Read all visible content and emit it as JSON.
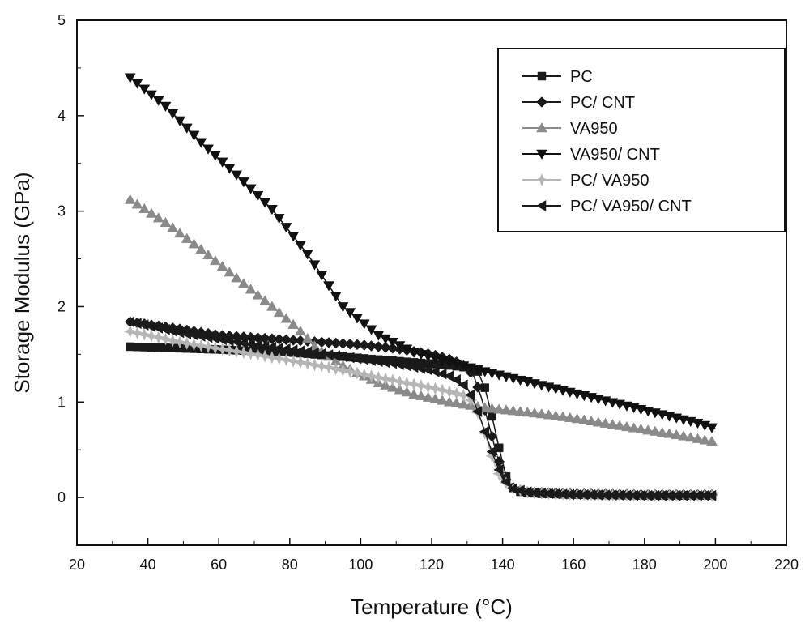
{
  "chart_data": {
    "type": "line",
    "title": "",
    "xlabel": "Temperature (°C)",
    "ylabel": "Storage Modulus (GPa)",
    "xlim": [
      20,
      220
    ],
    "ylim": [
      -0.5,
      5
    ],
    "xticks": [
      20,
      40,
      60,
      80,
      100,
      120,
      140,
      160,
      180,
      200,
      220
    ],
    "yticks": [
      0,
      1,
      2,
      3,
      4,
      5
    ],
    "grid": false,
    "legend_position": "top-right",
    "series": [
      {
        "name": "PC",
        "marker": "square",
        "color": "#1a1a1a",
        "points": [
          [
            35,
            1.58
          ],
          [
            60,
            1.55
          ],
          [
            80,
            1.52
          ],
          [
            100,
            1.46
          ],
          [
            110,
            1.43
          ],
          [
            120,
            1.4
          ],
          [
            126,
            1.38
          ],
          [
            130,
            1.36
          ],
          [
            133,
            1.32
          ],
          [
            135,
            1.15
          ],
          [
            137,
            0.85
          ],
          [
            139,
            0.52
          ],
          [
            141,
            0.22
          ],
          [
            143,
            0.1
          ],
          [
            145,
            0.06
          ],
          [
            150,
            0.04
          ],
          [
            160,
            0.03
          ],
          [
            180,
            0.02
          ],
          [
            200,
            0.02
          ]
        ]
      },
      {
        "name": "PC/ CNT",
        "marker": "diamond",
        "color": "#1a1a1a",
        "points": [
          [
            35,
            1.84
          ],
          [
            50,
            1.76
          ],
          [
            60,
            1.7
          ],
          [
            80,
            1.65
          ],
          [
            100,
            1.6
          ],
          [
            110,
            1.56
          ],
          [
            120,
            1.5
          ],
          [
            126,
            1.44
          ],
          [
            130,
            1.36
          ],
          [
            132,
            1.26
          ],
          [
            134,
            1.05
          ],
          [
            136,
            0.78
          ],
          [
            138,
            0.5
          ],
          [
            140,
            0.25
          ],
          [
            142,
            0.12
          ],
          [
            146,
            0.06
          ],
          [
            160,
            0.04
          ],
          [
            180,
            0.03
          ],
          [
            200,
            0.03
          ]
        ]
      },
      {
        "name": "VA950",
        "marker": "triangle-up",
        "color": "#8a8a8a",
        "points": [
          [
            35,
            3.12
          ],
          [
            45,
            2.88
          ],
          [
            55,
            2.6
          ],
          [
            65,
            2.3
          ],
          [
            75,
            2.0
          ],
          [
            82,
            1.78
          ],
          [
            88,
            1.55
          ],
          [
            95,
            1.38
          ],
          [
            105,
            1.2
          ],
          [
            115,
            1.08
          ],
          [
            125,
            1.0
          ],
          [
            135,
            0.94
          ],
          [
            150,
            0.88
          ],
          [
            160,
            0.83
          ],
          [
            170,
            0.77
          ],
          [
            180,
            0.71
          ],
          [
            190,
            0.65
          ],
          [
            200,
            0.58
          ]
        ]
      },
      {
        "name": "VA950/ CNT",
        "marker": "triangle-down",
        "color": "#111111",
        "points": [
          [
            35,
            4.4
          ],
          [
            45,
            4.1
          ],
          [
            55,
            3.72
          ],
          [
            65,
            3.38
          ],
          [
            75,
            3.02
          ],
          [
            85,
            2.55
          ],
          [
            95,
            2.0
          ],
          [
            105,
            1.7
          ],
          [
            115,
            1.52
          ],
          [
            125,
            1.42
          ],
          [
            135,
            1.32
          ],
          [
            145,
            1.23
          ],
          [
            155,
            1.14
          ],
          [
            165,
            1.05
          ],
          [
            175,
            0.96
          ],
          [
            185,
            0.87
          ],
          [
            195,
            0.78
          ],
          [
            200,
            0.72
          ]
        ]
      },
      {
        "name": "PC/ VA950",
        "marker": "star",
        "color": "#b5b5b5",
        "points": [
          [
            35,
            1.74
          ],
          [
            50,
            1.62
          ],
          [
            70,
            1.5
          ],
          [
            90,
            1.37
          ],
          [
            110,
            1.22
          ],
          [
            120,
            1.15
          ],
          [
            126,
            1.1
          ],
          [
            130,
            1.06
          ],
          [
            132,
            0.98
          ],
          [
            134,
            0.8
          ],
          [
            136,
            0.55
          ],
          [
            138,
            0.32
          ],
          [
            140,
            0.18
          ],
          [
            143,
            0.09
          ],
          [
            148,
            0.05
          ],
          [
            160,
            0.03
          ],
          [
            180,
            0.02
          ],
          [
            200,
            0.02
          ]
        ]
      },
      {
        "name": "PC/ VA950/ CNT",
        "marker": "triangle-left",
        "color": "#1a1a1a",
        "points": [
          [
            35,
            1.84
          ],
          [
            50,
            1.72
          ],
          [
            70,
            1.6
          ],
          [
            90,
            1.5
          ],
          [
            110,
            1.4
          ],
          [
            120,
            1.33
          ],
          [
            126,
            1.26
          ],
          [
            130,
            1.15
          ],
          [
            132,
            1.0
          ],
          [
            134,
            0.8
          ],
          [
            136,
            0.58
          ],
          [
            138,
            0.38
          ],
          [
            140,
            0.2
          ],
          [
            143,
            0.09
          ],
          [
            148,
            0.05
          ],
          [
            160,
            0.03
          ],
          [
            180,
            0.02
          ],
          [
            200,
            0.02
          ]
        ]
      }
    ]
  }
}
